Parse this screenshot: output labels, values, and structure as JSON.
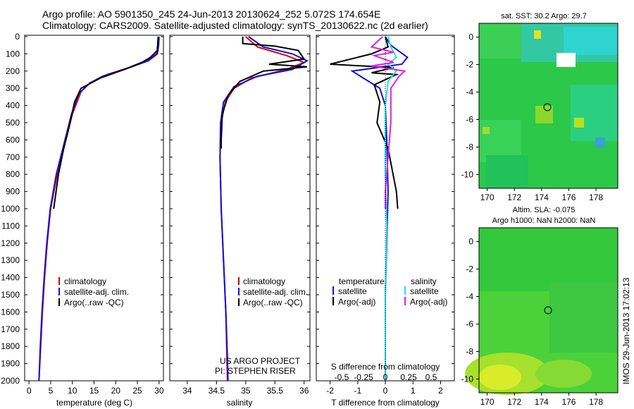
{
  "header": {
    "line1": "Argo profile: AO 5901350_245 24-Jun-2013 20130624_252 5.072S 174.654E",
    "line2": "Climatology: CARS2009. Satellite-adjusted climatology: synTS_20130622.nc (2d earlier)"
  },
  "colors": {
    "climatology": "#e00000",
    "satellite": "#1010e0",
    "argo": "#000000",
    "sat_sal": "#20e0f0",
    "argo_sal": "#e020e0"
  },
  "depth_ticks": [
    "0",
    "100",
    "200",
    "300",
    "400",
    "500",
    "600",
    "700",
    "800",
    "900",
    "1000",
    "1100",
    "1200",
    "1300",
    "1400",
    "1500",
    "1600",
    "1700",
    "1800",
    "1900",
    "2000"
  ],
  "legend": {
    "climatology": "climatology",
    "satellite": "satellite-adj. clim.",
    "argo": "Argo(..raw -QC)"
  },
  "diff_legend": {
    "temp_head": "temperature",
    "sal_head": "salinity",
    "satellite": "satellite",
    "argo_adj": "Argo(-adj)"
  },
  "credits": {
    "line1": "US ARGO PROJECT",
    "line2": "PI: STEPHEN RISER"
  },
  "map_top": {
    "title": "sat. SST: 30.2  Argo: 29.7"
  },
  "map_bottom": {
    "title1": "Altim. SLA: -0.075",
    "title2": "Argo h1000: NaN h2000: NaN"
  },
  "map_xticks": [
    "170",
    "172",
    "174",
    "176",
    "178"
  ],
  "map_yticks": [
    "0",
    "-2",
    "-4",
    "-6",
    "-8",
    "-10"
  ],
  "stamp": "IMOS 29-Jun-2013 17:02:13",
  "chart_data": [
    {
      "type": "line",
      "xlabel": "temperature (deg C)",
      "ylabel": "",
      "xlim": [
        -1,
        31
      ],
      "ylim": [
        2050,
        0
      ],
      "xticks": [
        "0",
        "5",
        "10",
        "15",
        "20",
        "25",
        "30"
      ],
      "series": [
        {
          "name": "climatology",
          "color": "#e00000",
          "points": [
            [
              29.8,
              0
            ],
            [
              29.7,
              50
            ],
            [
              29.4,
              100
            ],
            [
              27,
              140
            ],
            [
              23,
              180
            ],
            [
              18,
              220
            ],
            [
              14,
              270
            ],
            [
              12,
              320
            ],
            [
              10,
              450
            ],
            [
              8,
              650
            ],
            [
              6.5,
              800
            ],
            [
              5,
              1000
            ],
            [
              4.2,
              1200
            ],
            [
              3.6,
              1400
            ],
            [
              3.1,
              1600
            ],
            [
              2.7,
              1800
            ],
            [
              2.3,
              2000
            ],
            [
              2.2,
              2050
            ]
          ]
        },
        {
          "name": "satellite-adj. clim.",
          "color": "#1010e0",
          "points": [
            [
              30,
              0
            ],
            [
              29.9,
              50
            ],
            [
              29.6,
              100
            ],
            [
              27.5,
              140
            ],
            [
              22,
              190
            ],
            [
              17,
              230
            ],
            [
              14,
              270
            ],
            [
              11.5,
              330
            ],
            [
              9.8,
              450
            ],
            [
              7.8,
              650
            ],
            [
              6.3,
              800
            ],
            [
              4.9,
              1000
            ],
            [
              4.1,
              1200
            ],
            [
              3.5,
              1400
            ],
            [
              3.0,
              1600
            ],
            [
              2.6,
              1800
            ],
            [
              2.3,
              2000
            ],
            [
              2.2,
              2050
            ]
          ]
        },
        {
          "name": "Argo(..raw -QC)",
          "color": "#000000",
          "points": [
            [
              29.8,
              0
            ],
            [
              29.6,
              80
            ],
            [
              28,
              120
            ],
            [
              26,
              150
            ],
            [
              22,
              190
            ],
            [
              16.5,
              240
            ],
            [
              12,
              300
            ],
            [
              10.5,
              380
            ],
            [
              9.5,
              500
            ],
            [
              8.0,
              650
            ],
            [
              6.8,
              800
            ],
            [
              5.7,
              1000
            ]
          ]
        }
      ]
    },
    {
      "type": "line",
      "xlabel": "salinity",
      "ylabel": "",
      "xlim": [
        33.7,
        36.1
      ],
      "ylim": [
        2050,
        0
      ],
      "xticks": [
        "34",
        "34.5",
        "35",
        "35.5",
        "36"
      ],
      "series": [
        {
          "name": "climatology",
          "color": "#e00000",
          "points": [
            [
              35.0,
              0
            ],
            [
              35.2,
              60
            ],
            [
              35.7,
              110
            ],
            [
              36.0,
              150
            ],
            [
              35.7,
              190
            ],
            [
              35.1,
              240
            ],
            [
              34.8,
              300
            ],
            [
              34.65,
              380
            ],
            [
              34.58,
              500
            ],
            [
              34.56,
              700
            ],
            [
              34.58,
              1000
            ],
            [
              34.62,
              1300
            ],
            [
              34.66,
              1600
            ],
            [
              34.68,
              1900
            ],
            [
              34.69,
              2050
            ]
          ]
        },
        {
          "name": "satellite-adj. clim.",
          "color": "#1010e0",
          "points": [
            [
              35.05,
              0
            ],
            [
              35.3,
              60
            ],
            [
              35.8,
              100
            ],
            [
              36.05,
              140
            ],
            [
              35.8,
              190
            ],
            [
              35.2,
              230
            ],
            [
              34.8,
              290
            ],
            [
              34.62,
              380
            ],
            [
              34.57,
              500
            ],
            [
              34.56,
              700
            ],
            [
              34.58,
              1000
            ],
            [
              34.62,
              1300
            ],
            [
              34.66,
              1600
            ],
            [
              34.69,
              1900
            ],
            [
              34.7,
              2050
            ]
          ]
        },
        {
          "name": "Argo(..raw -QC)",
          "color": "#000000",
          "points": [
            [
              34.95,
              0
            ],
            [
              34.95,
              40
            ],
            [
              35.5,
              55
            ],
            [
              35.9,
              80
            ],
            [
              36.0,
              130
            ],
            [
              35.4,
              160
            ],
            [
              36.05,
              175
            ],
            [
              35.3,
              200
            ],
            [
              34.9,
              260
            ],
            [
              34.7,
              340
            ],
            [
              34.6,
              450
            ],
            [
              34.58,
              600
            ],
            [
              34.58,
              650
            ]
          ]
        }
      ]
    },
    {
      "type": "line",
      "xlabel": "T difference from climatology",
      "ylabel": "",
      "xlim": [
        -2.5,
        2.5
      ],
      "ylim": [
        2050,
        0
      ],
      "xticks": [
        "-2",
        "-1",
        "0",
        "1",
        "2"
      ],
      "top_axis_label": "S difference from climatology",
      "top_xticks": [
        "-0.5",
        "-0.25",
        "0",
        "0.25",
        "0.5"
      ],
      "series": [
        {
          "name": "temperature satellite",
          "color": "#1010e0",
          "points": [
            [
              0,
              0
            ],
            [
              0.2,
              50
            ],
            [
              0.8,
              120
            ],
            [
              0.6,
              160
            ],
            [
              -1.2,
              200
            ],
            [
              -0.8,
              240
            ],
            [
              -0.2,
              300
            ],
            [
              0,
              400
            ],
            [
              0.05,
              600
            ],
            [
              0.1,
              900
            ],
            [
              0.05,
              1200
            ],
            [
              0,
              1500
            ],
            [
              0,
              2050
            ]
          ]
        },
        {
          "name": "temperature Argo(-adj)",
          "color": "#000000",
          "points": [
            [
              0,
              0
            ],
            [
              0.1,
              60
            ],
            [
              -0.5,
              100
            ],
            [
              -2.0,
              160
            ],
            [
              0.3,
              180
            ],
            [
              -0.5,
              210
            ],
            [
              0.4,
              220
            ],
            [
              -0.4,
              280
            ],
            [
              -0.2,
              380
            ],
            [
              -0.3,
              500
            ],
            [
              0.1,
              650
            ],
            [
              0.4,
              900
            ],
            [
              0.45,
              1000
            ]
          ]
        },
        {
          "name": "salinity satellite",
          "color": "#20e0f0",
          "points": [
            [
              0.1,
              0
            ],
            [
              0.2,
              60
            ],
            [
              0.4,
              120
            ],
            [
              0.1,
              160
            ],
            [
              0.4,
              200
            ],
            [
              0.1,
              260
            ],
            [
              0,
              400
            ],
            [
              0,
              800
            ],
            [
              0.05,
              1100
            ],
            [
              0,
              1500
            ],
            [
              0,
              2050
            ]
          ]
        },
        {
          "name": "salinity Argo(-adj)",
          "color": "#e020e0",
          "points": [
            [
              -0.1,
              0
            ],
            [
              -0.5,
              60
            ],
            [
              0.3,
              90
            ],
            [
              -0.4,
              110
            ],
            [
              0.3,
              150
            ],
            [
              -0.5,
              170
            ],
            [
              0.7,
              200
            ],
            [
              0.5,
              230
            ],
            [
              0.2,
              300
            ],
            [
              0.2,
              500
            ],
            [
              0.1,
              700
            ],
            [
              0,
              900
            ],
            [
              0,
              1000
            ]
          ]
        }
      ]
    }
  ]
}
